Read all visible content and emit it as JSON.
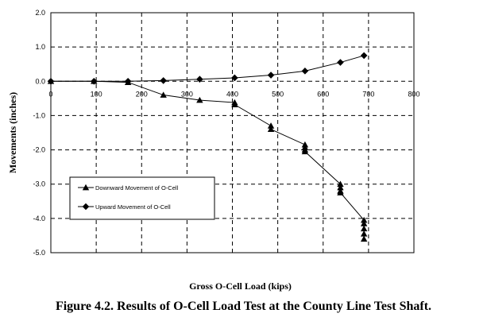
{
  "caption": "Figure 4.2.  Results of O-Cell Load Test at the County Line Test Shaft.",
  "chart_data": {
    "type": "line",
    "xlabel": "Gross O-Cell Load (kips)",
    "ylabel": "Movements (inches)",
    "xlim": [
      0,
      800
    ],
    "ylim": [
      -5.0,
      2.0
    ],
    "xticks": [
      0,
      100,
      200,
      300,
      400,
      500,
      600,
      700,
      800
    ],
    "xtick_labels": [
      "0",
      "100",
      "200",
      "300",
      "400",
      "500",
      "600",
      "700",
      "800"
    ],
    "yticks": [
      2.0,
      1.0,
      0.0,
      -1.0,
      -2.0,
      -3.0,
      -4.0,
      -5.0
    ],
    "ytick_labels": [
      "2.0",
      "1.0",
      "0.0",
      "-1.0",
      "-2.0",
      "-3.0",
      "-4.0",
      "-5.0"
    ],
    "grid": true,
    "legend_position": "lower-left",
    "series": [
      {
        "name": "Downward Movement of O-Cell",
        "marker": "triangle",
        "color": "#000000",
        "x": [
          0,
          95,
          170,
          248,
          328,
          405,
          405,
          485,
          485,
          560,
          560,
          560,
          560,
          638,
          638,
          638,
          638,
          690,
          690,
          690,
          690,
          690
        ],
        "y": [
          0,
          0,
          -0.03,
          -0.4,
          -0.55,
          -0.62,
          -0.68,
          -1.3,
          -1.4,
          -1.85,
          -1.93,
          -2.0,
          -2.05,
          -3.0,
          -3.1,
          -3.2,
          -3.25,
          -4.05,
          -4.15,
          -4.3,
          -4.45,
          -4.6
        ]
      },
      {
        "name": "Upward Movement of O-Cell",
        "marker": "diamond",
        "color": "#000000",
        "x": [
          0,
          95,
          170,
          248,
          328,
          405,
          485,
          560,
          638,
          690
        ],
        "y": [
          0,
          0,
          0,
          0.02,
          0.06,
          0.1,
          0.18,
          0.3,
          0.55,
          0.75
        ]
      }
    ]
  }
}
